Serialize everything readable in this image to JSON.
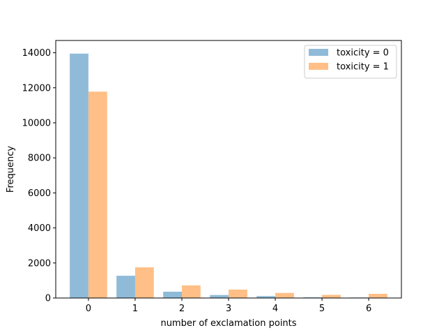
{
  "chart_data": {
    "type": "bar",
    "categories": [
      "0",
      "1",
      "2",
      "3",
      "4",
      "5",
      "6"
    ],
    "x": [
      0,
      1,
      2,
      3,
      4,
      5,
      6
    ],
    "series": [
      {
        "name": "toxicity = 0",
        "color": "#8fbbd9",
        "values": [
          13950,
          1270,
          360,
          170,
          110,
          40,
          30
        ]
      },
      {
        "name": "toxicity = 1",
        "color": "#ffbf86",
        "values": [
          11780,
          1750,
          720,
          480,
          290,
          180,
          240
        ]
      }
    ],
    "title": "",
    "xlabel": "number of exclamation points",
    "ylabel": "Frequency",
    "ylim": [
      0,
      14700
    ],
    "yticks": [
      0,
      2000,
      4000,
      6000,
      8000,
      10000,
      12000,
      14000
    ],
    "grid": false,
    "legend": "top-right"
  }
}
